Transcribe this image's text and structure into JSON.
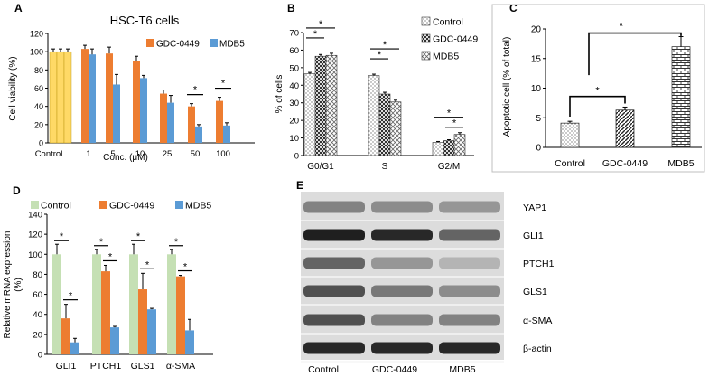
{
  "colors": {
    "control_a": "#FFD966",
    "gdc": "#ED7D31",
    "mdb5": "#5B9BD5",
    "control_d": "#C5E0B4",
    "blot_bg": "#DCDCDC",
    "band": "#141414"
  },
  "chart_data": [
    {
      "panel": "A",
      "type": "bar",
      "title": "HSC-T6 cells",
      "xlabel": "Conc. (μM)",
      "ylabel": "Cell viability (%)",
      "ylim": [
        0,
        120
      ],
      "yticks": [
        "0",
        "20",
        "40",
        "60",
        "80",
        "100",
        "120"
      ],
      "categories": [
        "Control",
        "1",
        "5",
        "10",
        "25",
        "50",
        "100"
      ],
      "control": {
        "value": 100,
        "error": 3
      },
      "series": [
        {
          "name": "GDC-0449",
          "values": [
            100,
            103,
            98,
            90,
            54,
            40,
            46
          ],
          "errors": [
            3,
            4,
            7,
            5,
            4,
            3,
            4
          ]
        },
        {
          "name": "MDB5",
          "values": [
            100,
            97,
            64,
            71,
            44,
            18,
            19
          ],
          "errors": [
            3,
            6,
            11,
            3,
            8,
            2,
            3
          ]
        }
      ],
      "annotations": [
        {
          "text": "*",
          "category": "50"
        },
        {
          "text": "*",
          "category": "100"
        }
      ],
      "legend": "top-right",
      "grid": false
    },
    {
      "panel": "B",
      "type": "bar",
      "ylabel": "% of cells",
      "ylim": [
        0,
        70
      ],
      "yticks": [
        "0",
        "10",
        "20",
        "30",
        "40",
        "50",
        "60",
        "70"
      ],
      "categories": [
        "G0/G1",
        "S",
        "G2/M"
      ],
      "series": [
        {
          "name": "Control",
          "values": [
            46.5,
            45.5,
            7.5
          ],
          "errors": [
            0.8,
            0.8,
            0.5
          ]
        },
        {
          "name": "GDC-0449",
          "values": [
            56.5,
            35,
            8.5
          ],
          "errors": [
            1,
            1,
            0.5
          ]
        },
        {
          "name": "MDB5",
          "values": [
            57,
            30.5,
            12
          ],
          "errors": [
            1.2,
            1,
            1
          ]
        }
      ],
      "annotations": [
        {
          "text": "*",
          "category": "G0/G1",
          "pair": "Control-GDC-0449"
        },
        {
          "text": "*",
          "category": "G0/G1",
          "pair": "Control-MDB5"
        },
        {
          "text": "*",
          "category": "S",
          "pair": "Control-GDC-0449"
        },
        {
          "text": "*",
          "category": "S",
          "pair": "Control-MDB5"
        },
        {
          "text": "*",
          "category": "G2/M",
          "pair": "Control-MDB5"
        },
        {
          "text": "*",
          "category": "G2/M",
          "pair": "GDC-0449-MDB5"
        }
      ],
      "legend": "top-right",
      "grid": false
    },
    {
      "panel": "C",
      "type": "bar",
      "ylabel": "Apoptotic cell (% of total)",
      "ylim": [
        0,
        20
      ],
      "yticks": [
        "0",
        "5",
        "10",
        "15",
        "20"
      ],
      "categories": [
        "Control",
        "GDC-0449",
        "MDB5"
      ],
      "values": [
        4.1,
        6.3,
        17
      ],
      "errors": [
        0.3,
        0.5,
        1.7
      ],
      "annotations": [
        {
          "text": "*",
          "pair": "Control-GDC-0449"
        },
        {
          "text": "*",
          "pair": "GDC-0449-MDB5"
        }
      ],
      "grid": false
    },
    {
      "panel": "D",
      "type": "bar",
      "ylabel": "Relative mRNA expression (%)",
      "ylabel_lines": [
        "Relative mRNA expression",
        "(%)"
      ],
      "ylim": [
        0,
        140
      ],
      "yticks": [
        "0",
        "20",
        "40",
        "60",
        "80",
        "100",
        "120",
        "140"
      ],
      "categories": [
        "GLI1",
        "PTCH1",
        "GLS1",
        "α-SMA"
      ],
      "series": [
        {
          "name": "Control",
          "values": [
            100,
            100,
            100,
            100
          ],
          "errors": [
            10,
            5,
            10,
            5
          ]
        },
        {
          "name": "GDC-0449",
          "values": [
            36,
            83,
            65,
            78
          ],
          "errors": [
            14,
            6,
            16,
            1
          ]
        },
        {
          "name": "MDB5",
          "values": [
            12,
            27,
            45,
            24
          ],
          "errors": [
            4,
            1,
            1,
            11
          ]
        }
      ],
      "annotations": [
        {
          "text": "*",
          "category": "GLI1",
          "pair": "Control-GDC-0449"
        },
        {
          "text": "*",
          "category": "GLI1",
          "pair": "GDC-0449-MDB5"
        },
        {
          "text": "*",
          "category": "PTCH1",
          "pair": "Control-GDC-0449"
        },
        {
          "text": "*",
          "category": "PTCH1",
          "pair": "GDC-0449-MDB5"
        },
        {
          "text": "*",
          "category": "GLS1",
          "pair": "Control-GDC-0449"
        },
        {
          "text": "*",
          "category": "GLS1",
          "pair": "GDC-0449-MDB5"
        },
        {
          "text": "*",
          "category": "α-SMA",
          "pair": "Control-GDC-0449"
        },
        {
          "text": "*",
          "category": "α-SMA",
          "pair": "GDC-0449-MDB5"
        }
      ],
      "legend": "top",
      "grid": false
    },
    {
      "panel": "E",
      "type": "table",
      "rows": [
        "YAP1",
        "GLI1",
        "PTCH1",
        "GLS1",
        "α-SMA",
        "β-actin"
      ],
      "columns": [
        "Control",
        "GDC-0449",
        "MDB5"
      ],
      "band_intensity": [
        [
          0.45,
          0.4,
          0.35
        ],
        [
          0.95,
          0.9,
          0.6
        ],
        [
          0.6,
          0.35,
          0.2
        ],
        [
          0.7,
          0.5,
          0.4
        ],
        [
          0.7,
          0.45,
          0.45
        ],
        [
          0.9,
          0.9,
          0.9
        ]
      ]
    }
  ]
}
